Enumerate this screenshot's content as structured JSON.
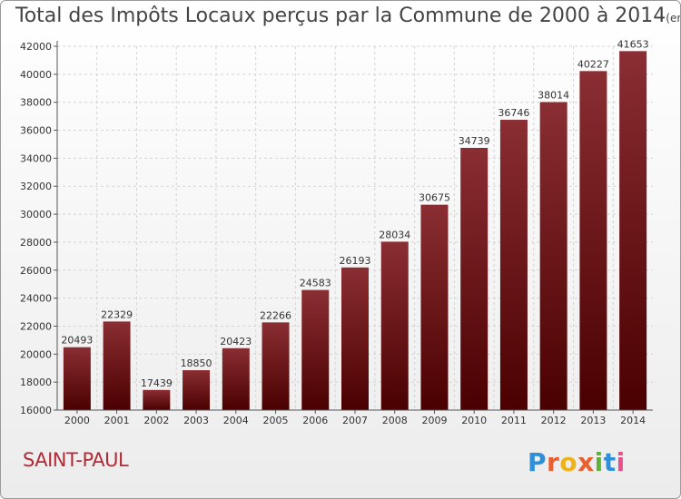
{
  "header": {
    "title": "Total des Impôts Locaux perçus par la Commune de 2000 à 2014",
    "unit": "(en milliers d'€)"
  },
  "footer": {
    "commune": "SAINT-PAUL",
    "logo_letters": [
      "P",
      "r",
      "o",
      "x",
      "i",
      "t",
      "i"
    ],
    "logo_colors": [
      "#2f8fd8",
      "#e9602f",
      "#f0b21a",
      "#e9602f",
      "#5cb536",
      "#2f8fd8",
      "#e94f8f"
    ]
  },
  "colors": {
    "bar_top": "#8a2e33",
    "bar_bottom": "#4a0000",
    "grid": "#d4d4d4",
    "axis": "#555555"
  },
  "chart_data": {
    "type": "bar",
    "title": "Total des Impôts Locaux perçus par la Commune de 2000 à 2014",
    "xlabel": "",
    "ylabel": "",
    "categories": [
      "2000",
      "2001",
      "2002",
      "2003",
      "2004",
      "2005",
      "2006",
      "2007",
      "2008",
      "2009",
      "2010",
      "2011",
      "2012",
      "2013",
      "2014"
    ],
    "values": [
      20493,
      22329,
      17439,
      18850,
      20423,
      22266,
      24583,
      26193,
      28034,
      30675,
      34739,
      36746,
      38014,
      40227,
      41653
    ],
    "ylim": [
      16000,
      42000
    ],
    "yticks": [
      16000,
      18000,
      20000,
      22000,
      24000,
      26000,
      28000,
      30000,
      32000,
      34000,
      36000,
      38000,
      40000,
      42000
    ],
    "grid": true
  }
}
